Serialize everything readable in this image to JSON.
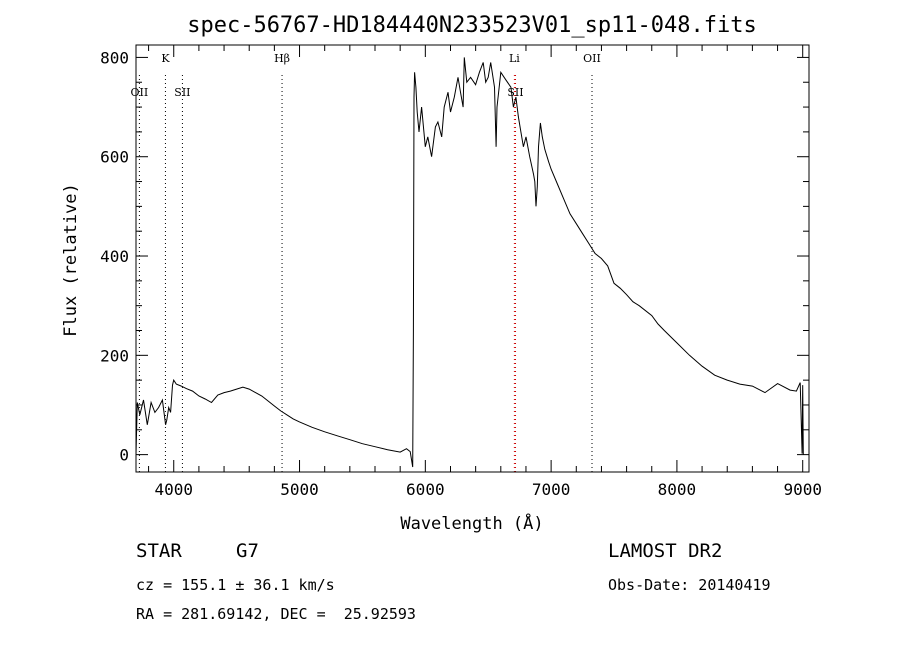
{
  "chart_data": {
    "type": "line",
    "title": "spec-56767-HD184440N233523V01_sp11-048.fits",
    "xlabel": "Wavelength (Å)",
    "ylabel": "Flux (relative)",
    "xlim": [
      3700,
      9050
    ],
    "ylim": [
      -35,
      825
    ],
    "xticks": [
      4000,
      5000,
      6000,
      7000,
      8000,
      9000
    ],
    "yticks": [
      0,
      200,
      400,
      600,
      800
    ],
    "line_color": "#000000",
    "marker_color_black": "#000000",
    "marker_color_red": "#cc0000",
    "markers": [
      {
        "label": "OII",
        "x": 3727,
        "row": 2,
        "color": "black"
      },
      {
        "label": "K",
        "x": 3934,
        "row": 1,
        "color": "black"
      },
      {
        "label": "SII",
        "x": 4069,
        "row": 2,
        "color": "black"
      },
      {
        "label": "Hβ",
        "x": 4861,
        "row": 1,
        "color": "black"
      },
      {
        "label": "Li",
        "x": 6708,
        "row": 1,
        "color": "red"
      },
      {
        "label": "SII",
        "x": 6717,
        "row": 2,
        "color": "red"
      },
      {
        "label": "OII",
        "x": 7325,
        "row": 1,
        "color": "black"
      }
    ],
    "series": [
      {
        "x": [
          3700,
          3710,
          3730,
          3760,
          3790,
          3820,
          3850,
          3880,
          3910,
          3935,
          3945,
          3960,
          3975,
          3990,
          4000,
          4020,
          4060,
          4100,
          4150,
          4200,
          4250,
          4300,
          4350,
          4400,
          4450,
          4500,
          4550,
          4600,
          4650,
          4700,
          4750,
          4800,
          4850,
          4900,
          4950,
          5000,
          5100,
          5200,
          5300,
          5400,
          5500,
          5600,
          5700,
          5800,
          5850,
          5880,
          5900,
          5905,
          5910,
          5915,
          5925,
          5935,
          5950,
          5970,
          6000,
          6020,
          6050,
          6080,
          6100,
          6130,
          6150,
          6180,
          6200,
          6230,
          6260,
          6280,
          6300,
          6310,
          6330,
          6360,
          6400,
          6430,
          6460,
          6480,
          6500,
          6520,
          6550,
          6563,
          6570,
          6600,
          6640,
          6680,
          6700,
          6720,
          6740,
          6760,
          6780,
          6800,
          6830,
          6860,
          6870,
          6880,
          6890,
          6900,
          6915,
          6930,
          6950,
          6980,
          7000,
          7050,
          7100,
          7150,
          7200,
          7250,
          7300,
          7350,
          7400,
          7450,
          7500,
          7550,
          7600,
          7650,
          7700,
          7800,
          7850,
          7900,
          8000,
          8100,
          8200,
          8300,
          8400,
          8500,
          8600,
          8700,
          8800,
          8900,
          8950,
          8980,
          8995,
          9000,
          9005
        ],
        "y": [
          0,
          105,
          80,
          110,
          60,
          105,
          85,
          95,
          110,
          60,
          70,
          95,
          85,
          140,
          150,
          142,
          138,
          133,
          128,
          118,
          112,
          105,
          120,
          125,
          128,
          132,
          136,
          132,
          125,
          118,
          108,
          98,
          88,
          80,
          72,
          66,
          55,
          46,
          38,
          30,
          22,
          16,
          10,
          5,
          12,
          6,
          -25,
          250,
          720,
          770,
          740,
          690,
          650,
          700,
          620,
          640,
          600,
          660,
          670,
          640,
          700,
          730,
          690,
          720,
          760,
          730,
          700,
          800,
          750,
          760,
          745,
          770,
          790,
          750,
          760,
          790,
          740,
          620,
          700,
          770,
          755,
          740,
          700,
          720,
          680,
          650,
          620,
          640,
          600,
          565,
          550,
          500,
          540,
          620,
          668,
          640,
          615,
          590,
          575,
          545,
          515,
          485,
          465,
          445,
          425,
          405,
          395,
          380,
          345,
          335,
          322,
          308,
          300,
          280,
          263,
          250,
          225,
          200,
          178,
          160,
          150,
          142,
          138,
          125,
          143,
          130,
          128,
          145,
          2,
          140,
          0
        ]
      }
    ]
  },
  "info": {
    "object_class": "STAR",
    "subclass": "G7",
    "survey": "LAMOST DR2",
    "cz": "cz = 155.1 ± 36.1 km/s",
    "obs_date": "Obs-Date: 20140419",
    "coords": "RA = 281.69142, DEC =  25.92593"
  }
}
